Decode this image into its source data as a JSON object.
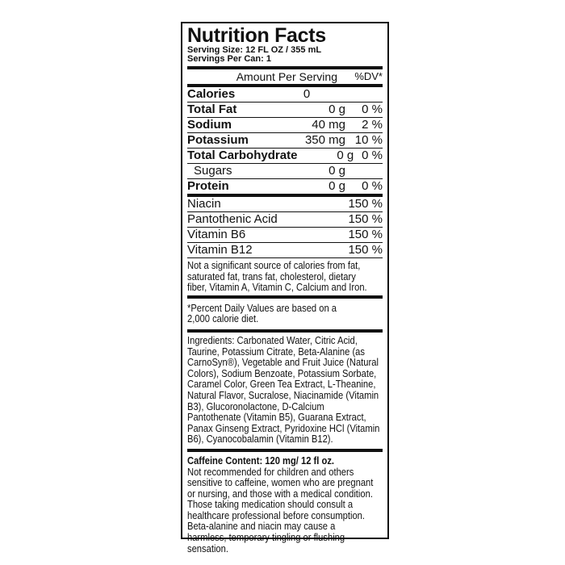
{
  "title": "Nutrition Facts",
  "serving_size": "Serving Size: 12 FL OZ / 355 mL",
  "servings_per": "Servings Per Can: 1",
  "header": {
    "amount": "Amount Per Serving",
    "dv": "%DV*"
  },
  "nutrients": [
    {
      "name": "Calories",
      "amount": "0",
      "dv": ""
    },
    {
      "name": "Total Fat",
      "amount": "0 g",
      "dv": "0 %"
    },
    {
      "name": "Sodium",
      "amount": "40 mg",
      "dv": "2 %"
    },
    {
      "name": "Potassium",
      "amount": "350 mg",
      "dv": "10 %"
    },
    {
      "name": "Total Carbohydrate",
      "amount": "0 g",
      "dv": "0 %"
    },
    {
      "name": "Sugars",
      "amount": "0 g",
      "dv": ""
    },
    {
      "name": "Protein",
      "amount": "0 g",
      "dv": "0 %"
    }
  ],
  "vitamins": [
    {
      "name": "Niacin",
      "dv": "150 %"
    },
    {
      "name": "Pantothenic Acid",
      "dv": "150 %"
    },
    {
      "name": "Vitamin B6",
      "dv": "150 %"
    },
    {
      "name": "Vitamin B12",
      "dv": "150 %"
    }
  ],
  "not_significant": [
    "Not a significant source of calories from fat,",
    "saturated fat, trans fat, cholesterol, dietary",
    "fiber, Vitamin A, Vitamin C, Calcium and Iron."
  ],
  "percent_note": [
    "*Percent Daily Values are based on a",
    "2,000 calorie diet."
  ],
  "ingredients": [
    "Ingredients: Carbonated Water, Citric Acid,",
    "Taurine, Potassium Citrate, Beta-Alanine (as",
    "CarnoSyn®), Vegetable and Fruit Juice (Natural",
    "Colors), Sodium Benzoate, Potassium Sorbate,",
    "Caramel Color, Green Tea Extract, L-Theanine,",
    "Natural Flavor, Sucralose, Niacinamide (Vitamin",
    "B3), Glucoronolactone, D-Calcium",
    "Pantothenate (Vitamin B5), Guarana Extract,",
    "Panax Ginseng Extract, Pyridoxine HCl (Vitamin",
    "B6), Cyanocobalamin (Vitamin B12)."
  ],
  "caffeine_title": "Caffeine Content: 120 mg/ 12 fl oz.",
  "caffeine_warning": [
    "Not recommended for children and others",
    "sensitive to caffeine, women who are pregnant",
    "or nursing, and those with a medical condition.",
    "Those taking medication should consult a",
    "healthcare professional before consumption.",
    "Beta-alanine and niacin may cause a",
    "harmless, temporary tingling or flushing",
    "sensation."
  ]
}
